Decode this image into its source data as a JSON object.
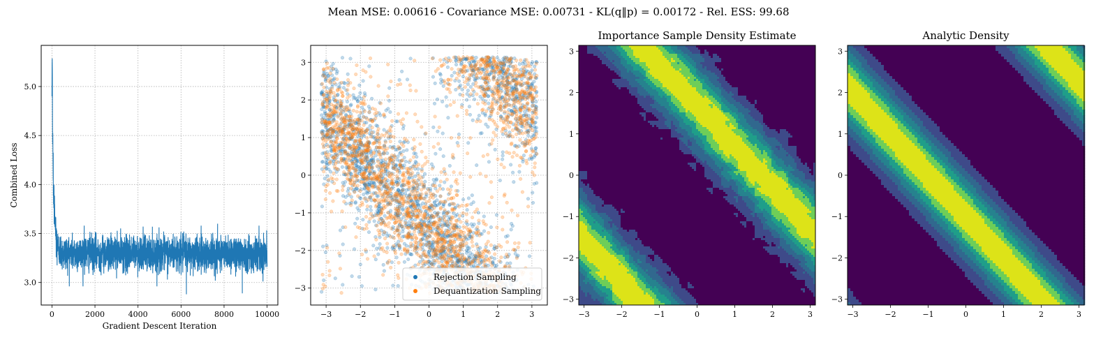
{
  "suptitle": "Mean MSE: 0.00616 - Covariance MSE: 0.00731 - KL(q‖p) = 0.00172 - Rel. ESS: 99.68",
  "chart_data": [
    {
      "type": "line",
      "title": "",
      "xlabel": "Gradient Descent Iteration",
      "ylabel": "Combined Loss",
      "xlim": [
        -500,
        10500
      ],
      "ylim": [
        2.77,
        5.42
      ],
      "xticks": [
        "0",
        "2000",
        "4000",
        "6000",
        "8000",
        "10000"
      ],
      "yticks": [
        "3.0",
        "3.5",
        "4.0",
        "4.5",
        "5.0"
      ],
      "grid": true,
      "color": "#1f77b4",
      "n_points": 10000,
      "series": [
        {
          "x": [
            0,
            10,
            20,
            30,
            40,
            50,
            60,
            80,
            100,
            120,
            150,
            200,
            250,
            300,
            400,
            500,
            700,
            1000,
            1500,
            2000,
            3000,
            4000,
            5000,
            6000,
            6200,
            7000,
            8000,
            8800,
            9000,
            10000
          ],
          "y": [
            4.9,
            5.32,
            5.1,
            4.4,
            4.55,
            4.2,
            4.0,
            3.9,
            3.8,
            3.7,
            3.6,
            3.45,
            3.38,
            3.35,
            3.32,
            3.3,
            3.3,
            3.3,
            3.3,
            3.3,
            3.3,
            3.3,
            3.3,
            3.3,
            3.3,
            3.3,
            3.3,
            3.3,
            3.3,
            3.3
          ]
        }
      ],
      "band": {
        "min": 3.0,
        "max": 3.58,
        "center": 3.3
      },
      "spikes": [
        {
          "x": 6250,
          "y": 2.88
        },
        {
          "x": 8850,
          "y": 2.89
        },
        {
          "x": 7700,
          "y": 3.6
        },
        {
          "x": 1500,
          "y": 3.58
        }
      ]
    },
    {
      "type": "scatter",
      "title": "",
      "xlim": [
        -3.45,
        3.45
      ],
      "ylim": [
        -3.45,
        3.45
      ],
      "xticks": [
        "−3",
        "−2",
        "−1",
        "0",
        "1",
        "2",
        "3"
      ],
      "yticks": [
        "−3",
        "−2",
        "−1",
        "0",
        "1",
        "2",
        "3"
      ],
      "grid": true,
      "legend_position": "bottom-right",
      "series": [
        {
          "name": "Rejection Sampling",
          "color": "#1f77b4"
        },
        {
          "name": "Dequantization Sampling",
          "color": "#ff7f0e"
        }
      ]
    },
    {
      "type": "heatmap",
      "title": "Importance Sample Density Estimate",
      "xlim": [
        -3.14,
        3.14
      ],
      "ylim": [
        -3.14,
        3.14
      ],
      "xticks": [
        "−3",
        "−2",
        "−1",
        "0",
        "1",
        "2",
        "3"
      ],
      "yticks": [
        "−3",
        "−2",
        "−1",
        "0",
        "1",
        "2",
        "3"
      ],
      "colormap": [
        "#440154",
        "#3b528b",
        "#21918c",
        "#5ec962",
        "#fde725"
      ]
    },
    {
      "type": "heatmap",
      "title": "Analytic Density",
      "xlim": [
        -3.14,
        3.14
      ],
      "ylim": [
        -3.14,
        3.14
      ],
      "xticks": [
        "−3",
        "−2",
        "−1",
        "0",
        "1",
        "2",
        "3"
      ],
      "yticks": [
        "−3",
        "−2",
        "−1",
        "0",
        "1",
        "2",
        "3"
      ],
      "colormap": [
        "#440154",
        "#3b528b",
        "#21918c",
        "#5ec962",
        "#fde725"
      ]
    }
  ]
}
